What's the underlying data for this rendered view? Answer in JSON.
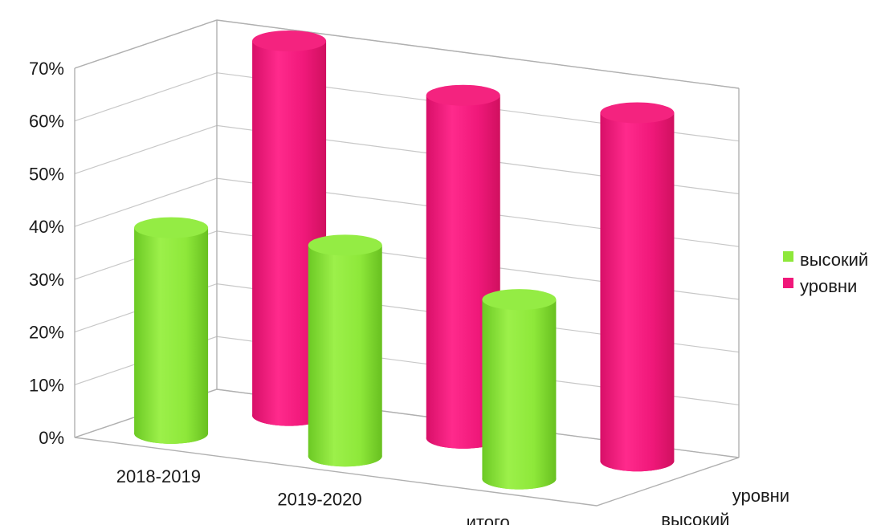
{
  "colors": {
    "высокий": "#8ee83a",
    "уровни": "#f0187a"
  },
  "chart_data": {
    "type": "bar",
    "variant": "3d-cylinder",
    "categories": [
      "2018-2019",
      "2019-2020",
      "итого"
    ],
    "series": [
      {
        "name": "высокий",
        "values": [
          0.39,
          0.4,
          0.34
        ]
      },
      {
        "name": "уровни",
        "values": [
          0.71,
          0.65,
          0.66
        ]
      }
    ],
    "depth_labels": [
      "высокий",
      "уровни"
    ],
    "y_ticks": [
      "0%",
      "10%",
      "20%",
      "30%",
      "40%",
      "50%",
      "60%",
      "70%"
    ],
    "ylim": [
      0,
      0.7
    ],
    "grid": true,
    "legend": {
      "placement": "right",
      "entries": [
        "высокий",
        "уровни"
      ]
    }
  }
}
